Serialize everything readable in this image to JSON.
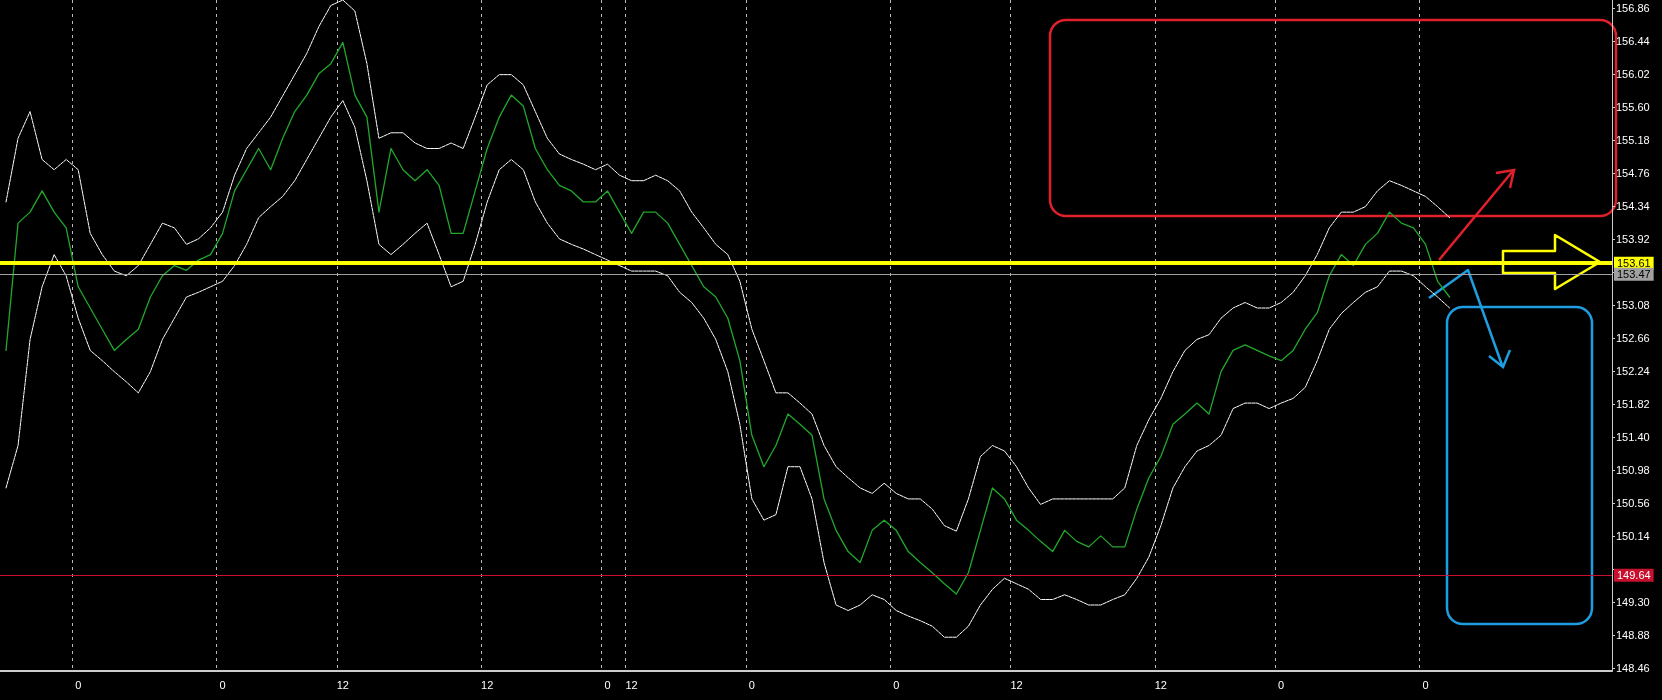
{
  "chart_data": {
    "type": "line",
    "categories": [
      null,
      null,
      null,
      null,
      null,
      null,
      "0",
      null,
      null,
      null,
      null,
      null,
      null,
      null,
      null,
      null,
      null,
      null,
      "0",
      null,
      null,
      null,
      null,
      null,
      null,
      null,
      null,
      null,
      "12",
      null,
      null,
      null,
      null,
      null,
      null,
      null,
      null,
      null,
      null,
      null,
      "12",
      null,
      null,
      null,
      null,
      null,
      null,
      null,
      null,
      null,
      "0",
      null,
      "12",
      null,
      null,
      null,
      null,
      null,
      null,
      null,
      null,
      null,
      "0",
      null,
      null,
      null,
      null,
      null,
      null,
      null,
      null,
      null,
      null,
      null,
      "0",
      null,
      null,
      null,
      null,
      null,
      null,
      null,
      null,
      null,
      "12",
      null,
      null,
      null,
      null,
      null,
      null,
      null,
      null,
      null,
      null,
      null,
      "12",
      null,
      null,
      null,
      null,
      null,
      null,
      null,
      null,
      null,
      "0",
      null,
      null,
      null,
      null,
      null,
      null,
      null,
      null,
      null,
      null,
      null,
      "0",
      null,
      null,
      null,
      null,
      null,
      null,
      null,
      null,
      null,
      null,
      null,
      null,
      null,
      null,
      null
    ],
    "series": [
      {
        "color": "#ffffff",
        "line_style": "dashed",
        "values": [
          154.39,
          155.2,
          155.54,
          154.93,
          154.8,
          154.93,
          154.8,
          153.99,
          153.72,
          153.51,
          153.45,
          153.58,
          153.85,
          154.12,
          154.06,
          153.85,
          153.92,
          154.06,
          154.26,
          154.73,
          155.07,
          155.27,
          155.47,
          155.74,
          156.01,
          156.28,
          156.62,
          156.89,
          156.96,
          156.82,
          156.15,
          155.2,
          155.27,
          155.27,
          155.14,
          155.07,
          155.07,
          155.14,
          155.07,
          155.47,
          155.88,
          156.01,
          156.01,
          155.88,
          155.54,
          155.2,
          155.0,
          154.93,
          154.87,
          154.8,
          154.87,
          154.73,
          154.66,
          154.66,
          154.73,
          154.66,
          154.53,
          154.26,
          154.06,
          153.85,
          153.72,
          153.38,
          152.77,
          152.37,
          151.96,
          151.96,
          151.83,
          151.69,
          151.29,
          151.02,
          150.88,
          150.75,
          150.68,
          150.81,
          150.68,
          150.61,
          150.61,
          150.48,
          150.27,
          150.2,
          150.61,
          151.15,
          151.29,
          151.22,
          151.02,
          150.75,
          150.54,
          150.61,
          150.61,
          150.61,
          150.61,
          150.61,
          150.61,
          150.75,
          151.29,
          151.62,
          151.89,
          152.23,
          152.5,
          152.64,
          152.7,
          152.91,
          153.04,
          153.11,
          153.04,
          153.04,
          153.11,
          153.24,
          153.45,
          153.72,
          154.06,
          154.26,
          154.26,
          154.33,
          154.53,
          154.66,
          154.6,
          154.53,
          154.46,
          154.33,
          154.19,
          null,
          null,
          null,
          null,
          null,
          null,
          null,
          null,
          null,
          null,
          null,
          null,
          null
        ]
      },
      {
        "color": "#ffffff",
        "line_style": "dashed",
        "values": [
          150.75,
          151.29,
          152.64,
          153.31,
          153.72,
          153.45,
          152.91,
          152.5,
          152.37,
          152.23,
          152.1,
          151.96,
          152.23,
          152.64,
          152.91,
          153.18,
          153.24,
          153.31,
          153.38,
          153.58,
          153.85,
          154.19,
          154.33,
          154.46,
          154.66,
          154.93,
          155.2,
          155.47,
          155.68,
          155.34,
          154.66,
          153.85,
          153.72,
          153.85,
          153.99,
          154.12,
          153.72,
          153.31,
          153.38,
          153.85,
          154.39,
          154.8,
          154.93,
          154.8,
          154.39,
          154.12,
          153.92,
          153.85,
          153.79,
          153.72,
          153.65,
          153.58,
          153.51,
          153.51,
          153.51,
          153.45,
          153.24,
          153.11,
          152.91,
          152.64,
          152.23,
          151.56,
          150.61,
          150.34,
          150.41,
          151.02,
          151.02,
          150.61,
          149.8,
          149.26,
          149.19,
          149.26,
          149.39,
          149.33,
          149.19,
          149.12,
          149.06,
          148.99,
          148.85,
          148.85,
          148.99,
          149.26,
          149.46,
          149.6,
          149.53,
          149.46,
          149.33,
          149.33,
          149.39,
          149.33,
          149.26,
          149.26,
          149.33,
          149.39,
          149.6,
          149.87,
          150.27,
          150.75,
          151.02,
          151.22,
          151.29,
          151.42,
          151.76,
          151.83,
          151.83,
          151.76,
          151.83,
          151.89,
          152.03,
          152.37,
          152.77,
          152.97,
          153.11,
          153.24,
          153.31,
          153.51,
          153.51,
          153.45,
          153.31,
          153.18,
          153.04,
          null,
          null,
          null,
          null,
          null,
          null,
          null,
          null,
          null,
          null,
          null,
          null,
          null
        ]
      },
      {
        "color": "#22a82a",
        "line_style": "solid",
        "values": [
          152.5,
          154.12,
          154.26,
          154.53,
          154.26,
          154.06,
          153.31,
          153.04,
          152.77,
          152.5,
          152.64,
          152.77,
          153.18,
          153.45,
          153.58,
          153.52,
          153.65,
          153.72,
          153.99,
          154.53,
          154.8,
          155.07,
          154.8,
          155.2,
          155.54,
          155.75,
          156.02,
          156.15,
          156.42,
          155.75,
          155.47,
          154.26,
          155.07,
          154.8,
          154.66,
          154.8,
          154.6,
          153.99,
          153.99,
          154.53,
          155.07,
          155.47,
          155.75,
          155.61,
          155.07,
          154.8,
          154.6,
          154.53,
          154.39,
          154.39,
          154.53,
          154.26,
          153.99,
          154.26,
          154.26,
          154.12,
          153.85,
          153.58,
          153.31,
          153.18,
          152.91,
          152.37,
          151.42,
          151.02,
          151.29,
          151.69,
          151.56,
          151.42,
          150.61,
          150.21,
          149.94,
          149.8,
          150.21,
          150.34,
          150.21,
          149.94,
          149.8,
          149.67,
          149.53,
          149.4,
          149.67,
          150.21,
          150.75,
          150.61,
          150.34,
          150.21,
          150.07,
          149.94,
          150.21,
          150.07,
          150.0,
          150.14,
          150.0,
          150.0,
          150.48,
          150.88,
          151.15,
          151.56,
          151.69,
          151.83,
          151.69,
          152.23,
          152.5,
          152.57,
          152.5,
          152.43,
          152.37,
          152.5,
          152.77,
          152.98,
          153.45,
          153.72,
          153.58,
          153.85,
          153.99,
          154.26,
          154.12,
          154.06,
          153.85,
          153.38,
          153.18,
          null,
          null,
          null,
          null,
          null,
          null,
          null,
          null,
          null,
          null,
          null,
          null,
          null
        ]
      }
    ],
    "ylim": [
      148.42,
      156.96
    ],
    "yticks": [
      148.46,
      148.88,
      {
        "value": 149.3,
        "label": "149.30"
      },
      {
        "value": 149.72,
        "label": null
      },
      150.14,
      150.56,
      150.98,
      {
        "value": 151.4,
        "label": "151.40"
      },
      151.82,
      152.24,
      152.66,
      153.08,
      {
        "value": 153.5,
        "label": null
      },
      153.92,
      154.34,
      154.76,
      155.18,
      {
        "value": 155.6,
        "label": "155.60"
      },
      156.02,
      156.44,
      156.86
    ],
    "ref_lines": [
      {
        "axis": "y",
        "value": 153.61,
        "label": "153.61",
        "color": "#ffff00",
        "line_style": "solid"
      },
      {
        "axis": "y",
        "value": 153.47,
        "label": "153.47",
        "color": "#a0a0a0",
        "line_style": "solid"
      },
      {
        "axis": "y",
        "value": 149.64,
        "label": "149.64",
        "color": "#c8102e",
        "line_style": "solid"
      }
    ],
    "grid": "x",
    "marker": "none"
  }
}
